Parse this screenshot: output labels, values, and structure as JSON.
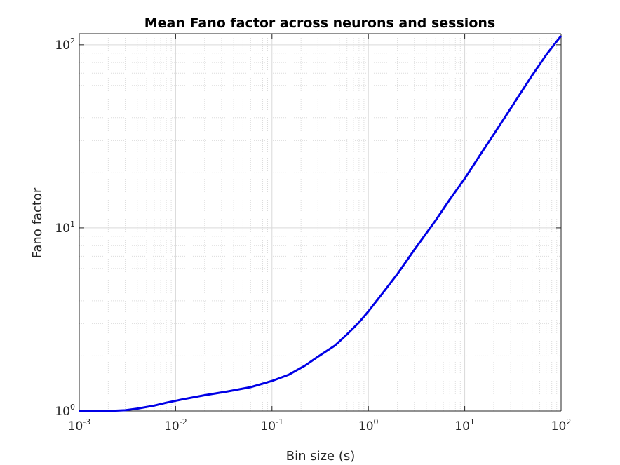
{
  "chart_data": {
    "type": "line",
    "title": "Mean Fano factor across neurons and sessions",
    "xlabel": "Bin size (s)",
    "ylabel": "Fano factor",
    "x_scale": "log",
    "y_scale": "log",
    "xlim": [
      0.001,
      100
    ],
    "ylim": [
      1,
      115
    ],
    "grid": true,
    "minor_grid": true,
    "x_ticks": [
      {
        "value": 0.001,
        "base": "10",
        "exp": "-3"
      },
      {
        "value": 0.01,
        "base": "10",
        "exp": "-2"
      },
      {
        "value": 0.1,
        "base": "10",
        "exp": "-1"
      },
      {
        "value": 1,
        "base": "10",
        "exp": "0"
      },
      {
        "value": 10,
        "base": "10",
        "exp": "1"
      },
      {
        "value": 100,
        "base": "10",
        "exp": "2"
      }
    ],
    "y_ticks": [
      {
        "value": 1,
        "base": "10",
        "exp": "0"
      },
      {
        "value": 10,
        "base": "10",
        "exp": "1"
      },
      {
        "value": 100,
        "base": "10",
        "exp": "2"
      }
    ],
    "series": [
      {
        "color": "#0000e6",
        "x": [
          0.001,
          0.002,
          0.003,
          0.004,
          0.006,
          0.008,
          0.012,
          0.02,
          0.035,
          0.06,
          0.1,
          0.15,
          0.22,
          0.3,
          0.45,
          0.6,
          0.8,
          1,
          1.5,
          2,
          3,
          5,
          7,
          10,
          15,
          20,
          30,
          50,
          70,
          100
        ],
        "y": [
          1.0,
          1.0,
          1.01,
          1.03,
          1.07,
          1.11,
          1.16,
          1.22,
          1.28,
          1.35,
          1.46,
          1.58,
          1.77,
          1.98,
          2.28,
          2.62,
          3.05,
          3.5,
          4.6,
          5.6,
          7.6,
          11.0,
          14.3,
          18.6,
          25.8,
          32.4,
          45,
          68,
          88,
          112
        ]
      }
    ]
  }
}
